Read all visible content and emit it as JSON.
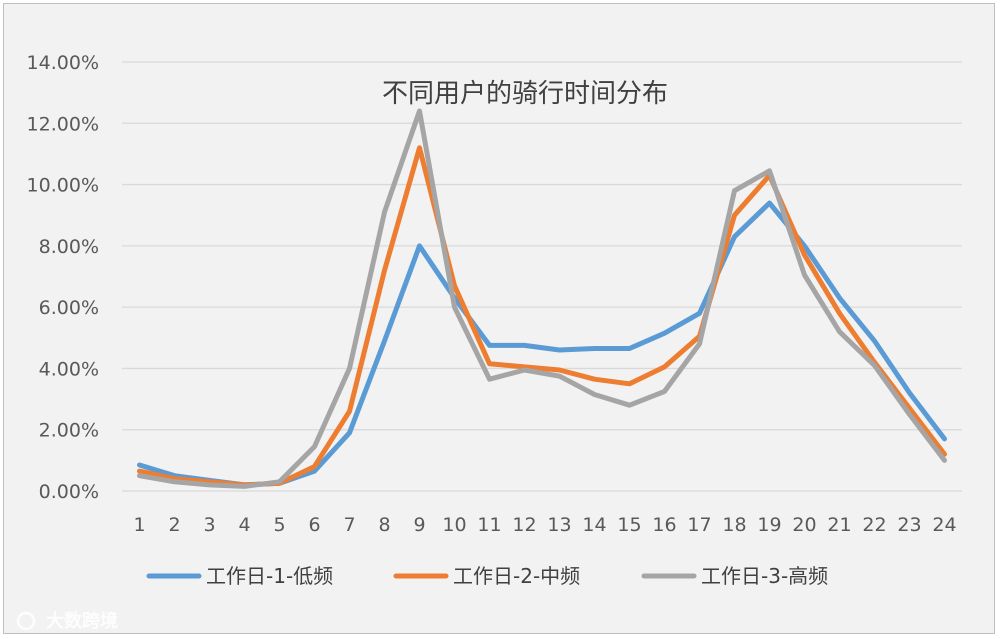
{
  "chart_data": {
    "type": "line",
    "title": "不同用户的骑行时间分布",
    "categories": [
      "1",
      "2",
      "3",
      "4",
      "5",
      "6",
      "7",
      "8",
      "9",
      "10",
      "11",
      "12",
      "13",
      "14",
      "15",
      "16",
      "17",
      "18",
      "19",
      "20",
      "21",
      "22",
      "23",
      "24"
    ],
    "y_ticks": [
      "0.00%",
      "2.00%",
      "4.00%",
      "6.00%",
      "8.00%",
      "10.00%",
      "12.00%",
      "14.00%"
    ],
    "ylim": [
      0,
      14
    ],
    "grid": true,
    "legend_position": "bottom",
    "series": [
      {
        "name": "工作日-1-低频",
        "color": "#5b9bd5",
        "values": [
          0.85,
          0.5,
          0.35,
          0.2,
          0.25,
          0.65,
          1.9,
          4.9,
          8.0,
          6.3,
          4.75,
          4.75,
          4.6,
          4.65,
          4.65,
          5.15,
          5.8,
          8.3,
          9.4,
          8.0,
          6.3,
          4.9,
          3.2,
          1.7
        ]
      },
      {
        "name": "工作日-2-中频",
        "color": "#ed7d31",
        "values": [
          0.65,
          0.4,
          0.3,
          0.2,
          0.25,
          0.8,
          2.6,
          7.2,
          11.2,
          6.7,
          4.15,
          4.05,
          3.95,
          3.65,
          3.5,
          4.05,
          5.05,
          9.0,
          10.3,
          7.7,
          5.8,
          4.2,
          2.7,
          1.2
        ]
      },
      {
        "name": "工作日-3-高频",
        "color": "#a5a5a5",
        "values": [
          0.5,
          0.3,
          0.2,
          0.15,
          0.3,
          1.45,
          4.0,
          9.1,
          12.4,
          6.0,
          3.65,
          3.95,
          3.75,
          3.15,
          2.8,
          3.25,
          4.8,
          9.8,
          10.45,
          7.05,
          5.2,
          4.1,
          2.5,
          1.0
        ]
      }
    ]
  },
  "watermark": {
    "text": "大数跨境"
  }
}
